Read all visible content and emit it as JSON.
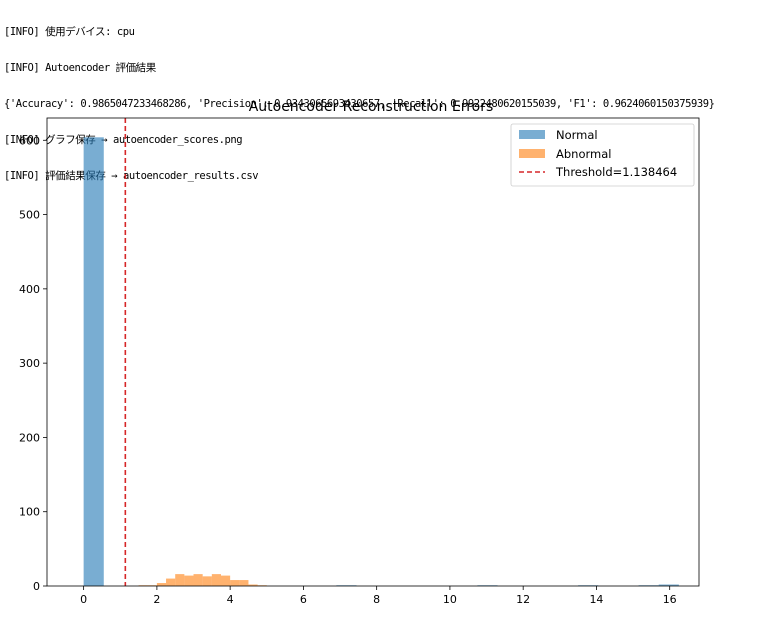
{
  "console": {
    "lines": [
      "[INFO] 使用デバイス: cpu",
      "[INFO] Autoencoder 評価結果",
      "{'Accuracy': 0.9865047233468286, 'Precision': 0.9343065693430657, 'Recall': 0.9922480620155039, 'F1': 0.9624060150375939}",
      "[INFO] グラフ保存 → autoencoder_scores.png",
      "[INFO] 評価結果保存 → autoencoder_results.csv"
    ]
  },
  "chart_data": {
    "type": "bar",
    "title": "Autoencoder Reconstruction Errors",
    "xlabel": "",
    "ylabel": "",
    "xlim": [
      -1.0,
      16.8
    ],
    "ylim": [
      0,
      630
    ],
    "xticks": [
      0,
      2,
      4,
      6,
      8,
      10,
      12,
      14,
      16
    ],
    "yticks": [
      0,
      100,
      200,
      300,
      400,
      500,
      600
    ],
    "legend_position": "top-right",
    "grid": false,
    "series": [
      {
        "name": "Normal",
        "color": "#1f77b4",
        "opacity": 0.6,
        "bins": [
          {
            "x0": 0.0,
            "x1": 0.55,
            "y": 604
          },
          {
            "x0": 6.9,
            "x1": 7.45,
            "y": 1
          },
          {
            "x0": 10.75,
            "x1": 11.3,
            "y": 1
          },
          {
            "x0": 13.5,
            "x1": 14.05,
            "y": 1
          },
          {
            "x0": 15.15,
            "x1": 15.7,
            "y": 1
          },
          {
            "x0": 15.7,
            "x1": 16.25,
            "y": 2
          }
        ]
      },
      {
        "name": "Abnormal",
        "color": "#ff7f0e",
        "opacity": 0.6,
        "bins": [
          {
            "x0": 1.5,
            "x1": 1.75,
            "y": 1
          },
          {
            "x0": 1.75,
            "x1": 2.0,
            "y": 1
          },
          {
            "x0": 2.0,
            "x1": 2.25,
            "y": 4
          },
          {
            "x0": 2.25,
            "x1": 2.5,
            "y": 10
          },
          {
            "x0": 2.5,
            "x1": 2.75,
            "y": 16
          },
          {
            "x0": 2.75,
            "x1": 3.0,
            "y": 14
          },
          {
            "x0": 3.0,
            "x1": 3.25,
            "y": 16
          },
          {
            "x0": 3.25,
            "x1": 3.5,
            "y": 13
          },
          {
            "x0": 3.5,
            "x1": 3.75,
            "y": 16
          },
          {
            "x0": 3.75,
            "x1": 4.0,
            "y": 14
          },
          {
            "x0": 4.0,
            "x1": 4.25,
            "y": 8
          },
          {
            "x0": 4.25,
            "x1": 4.5,
            "y": 8
          },
          {
            "x0": 4.5,
            "x1": 4.75,
            "y": 2
          },
          {
            "x0": 4.75,
            "x1": 5.0,
            "y": 1
          }
        ]
      }
    ],
    "threshold": {
      "label": "Threshold=1.138464",
      "value": 1.138464,
      "color": "#d62728"
    }
  }
}
